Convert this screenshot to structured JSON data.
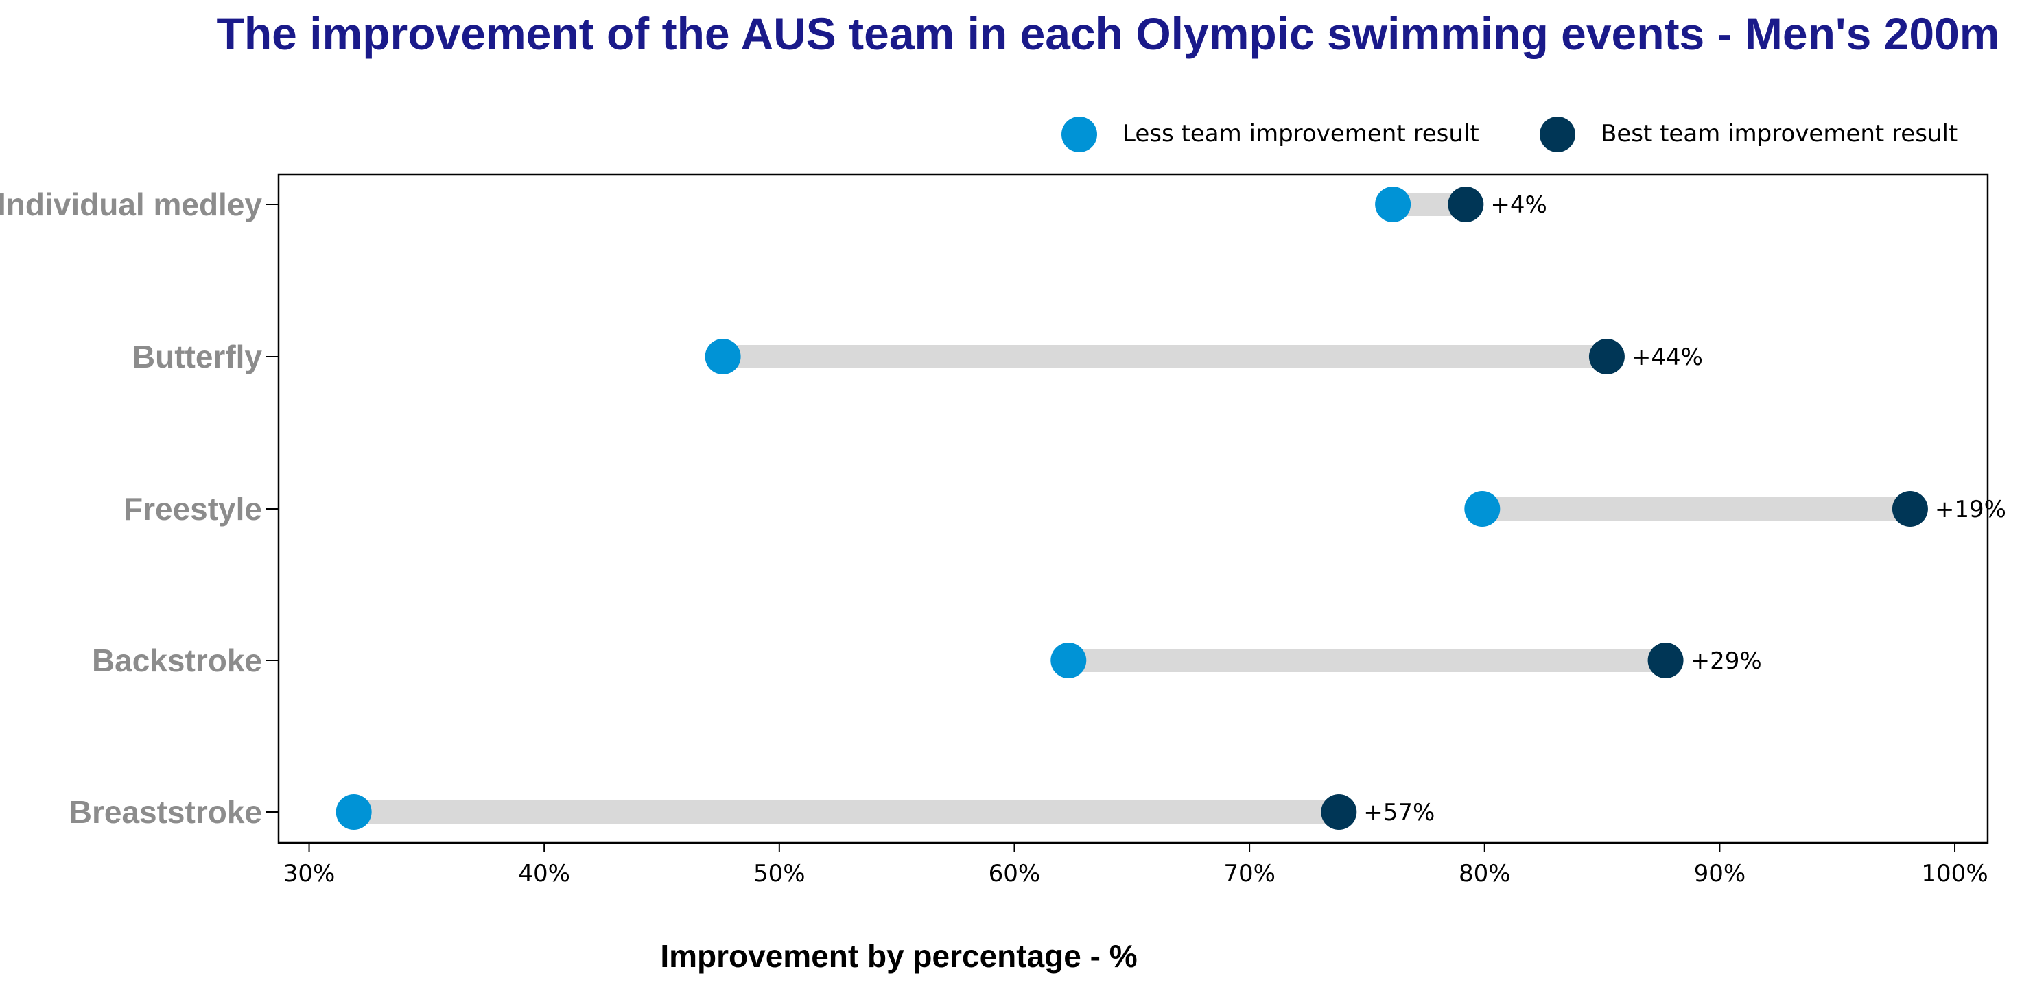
{
  "chart_data": {
    "type": "dumbbell",
    "title": "The improvement of the AUS team in each Olympic swimming events - Men's 200m",
    "xlabel": "Improvement by percentage - %",
    "ylabel": "",
    "xlim": [
      28.7,
      101.4
    ],
    "xticks": [
      30,
      40,
      50,
      60,
      70,
      80,
      90,
      100
    ],
    "xtick_labels": [
      "30%",
      "40%",
      "50%",
      "60%",
      "70%",
      "80%",
      "90%",
      "100%"
    ],
    "grid": false,
    "legend_position": "top-right",
    "legend": [
      {
        "name": "Less team improvement result",
        "color": "#0093d6"
      },
      {
        "name": "Best team improvement result",
        "color": "#003656"
      }
    ],
    "connector_color": "#d9d9d9",
    "categories": [
      "Individual medley",
      "Butterfly",
      "Freestyle",
      "Backstroke",
      "Breaststroke"
    ],
    "less": [
      76.1,
      47.6,
      79.9,
      62.3,
      31.9
    ],
    "best": [
      79.2,
      85.2,
      98.1,
      87.7,
      73.8
    ],
    "annotations": [
      "+4%",
      "+44%",
      "+19%",
      "+29%",
      "+57%"
    ],
    "colors": {
      "title": "#1a1a8a",
      "category_label": "#8c8c8c",
      "axis": "#000000"
    }
  }
}
